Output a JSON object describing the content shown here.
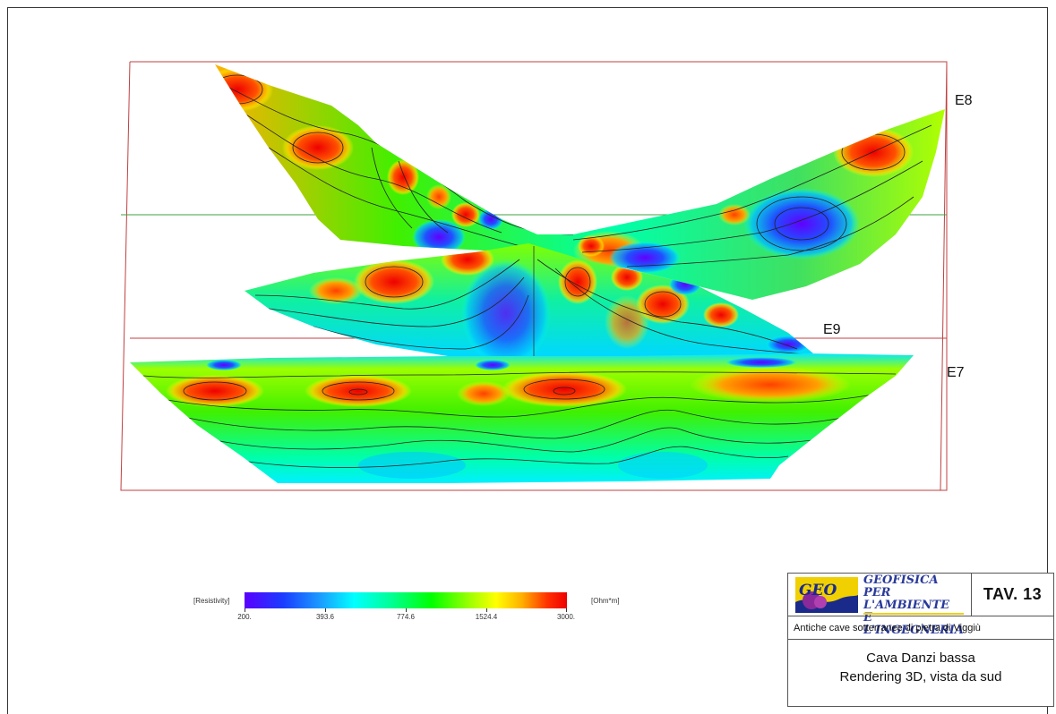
{
  "sections": [
    {
      "id": "E8",
      "label": "E8"
    },
    {
      "id": "E9",
      "label": "E9"
    },
    {
      "id": "E7",
      "label": "E7"
    }
  ],
  "colorbar": {
    "title": "[Resistivity]",
    "unit": "[Ohm*m]",
    "ticks": [
      "200.",
      "393.6",
      "774.6",
      "1524.4",
      "3000."
    ],
    "colors": [
      "#5a00ff",
      "#1a3cff",
      "#1aa0ff",
      "#00ffff",
      "#00ff90",
      "#00ff00",
      "#a0ff00",
      "#ffff00",
      "#ffb000",
      "#ff3000",
      "#ee0000"
    ]
  },
  "title_block": {
    "logo_lines": [
      "GEOFISICA",
      "PER L'AMBIENTE",
      "E L'INGEGNERIA"
    ],
    "logo_mark": "GEO",
    "tav": "TAV. 13",
    "subtitle": "Antiche cave sotterranee di pietra di Viggiù",
    "description_line1": "Cava Danzi bassa",
    "description_line2": "Rendering 3D, vista da sud"
  }
}
